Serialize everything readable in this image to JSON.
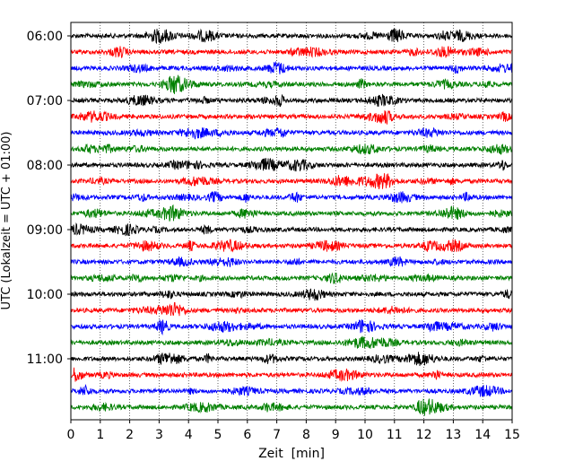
{
  "chart_data": {
    "type": "line",
    "title": "",
    "xlabel": "Zeit  [min]",
    "ylabel": "UTC (Lokalzeit = UTC + 01:00)",
    "xlim": [
      0,
      15
    ],
    "x_ticks": [
      "0",
      "1",
      "2",
      "3",
      "4",
      "5",
      "6",
      "7",
      "8",
      "9",
      "10",
      "11",
      "12",
      "13",
      "14",
      "15"
    ],
    "y_ticks": [
      "06:00",
      "07:00",
      "08:00",
      "09:00",
      "10:00",
      "11:00"
    ],
    "grid": "vertical dotted lines at each minute",
    "trace_interval_min": 15,
    "rows": [
      {
        "start": "06:00",
        "color": "#000000"
      },
      {
        "start": "06:15",
        "color": "#ff0000"
      },
      {
        "start": "06:30",
        "color": "#0000ff"
      },
      {
        "start": "06:45",
        "color": "#008000"
      },
      {
        "start": "07:00",
        "color": "#000000"
      },
      {
        "start": "07:15",
        "color": "#ff0000"
      },
      {
        "start": "07:30",
        "color": "#0000ff"
      },
      {
        "start": "07:45",
        "color": "#008000"
      },
      {
        "start": "08:00",
        "color": "#000000"
      },
      {
        "start": "08:15",
        "color": "#ff0000"
      },
      {
        "start": "08:30",
        "color": "#0000ff"
      },
      {
        "start": "08:45",
        "color": "#008000"
      },
      {
        "start": "09:00",
        "color": "#000000"
      },
      {
        "start": "09:15",
        "color": "#ff0000"
      },
      {
        "start": "09:30",
        "color": "#0000ff"
      },
      {
        "start": "09:45",
        "color": "#008000"
      },
      {
        "start": "10:00",
        "color": "#000000"
      },
      {
        "start": "10:15",
        "color": "#ff0000"
      },
      {
        "start": "10:30",
        "color": "#0000ff"
      },
      {
        "start": "10:45",
        "color": "#008000"
      },
      {
        "start": "11:00",
        "color": "#000000"
      },
      {
        "start": "11:15",
        "color": "#ff0000"
      },
      {
        "start": "11:30",
        "color": "#0000ff"
      },
      {
        "start": "11:45",
        "color": "#008000"
      }
    ]
  }
}
